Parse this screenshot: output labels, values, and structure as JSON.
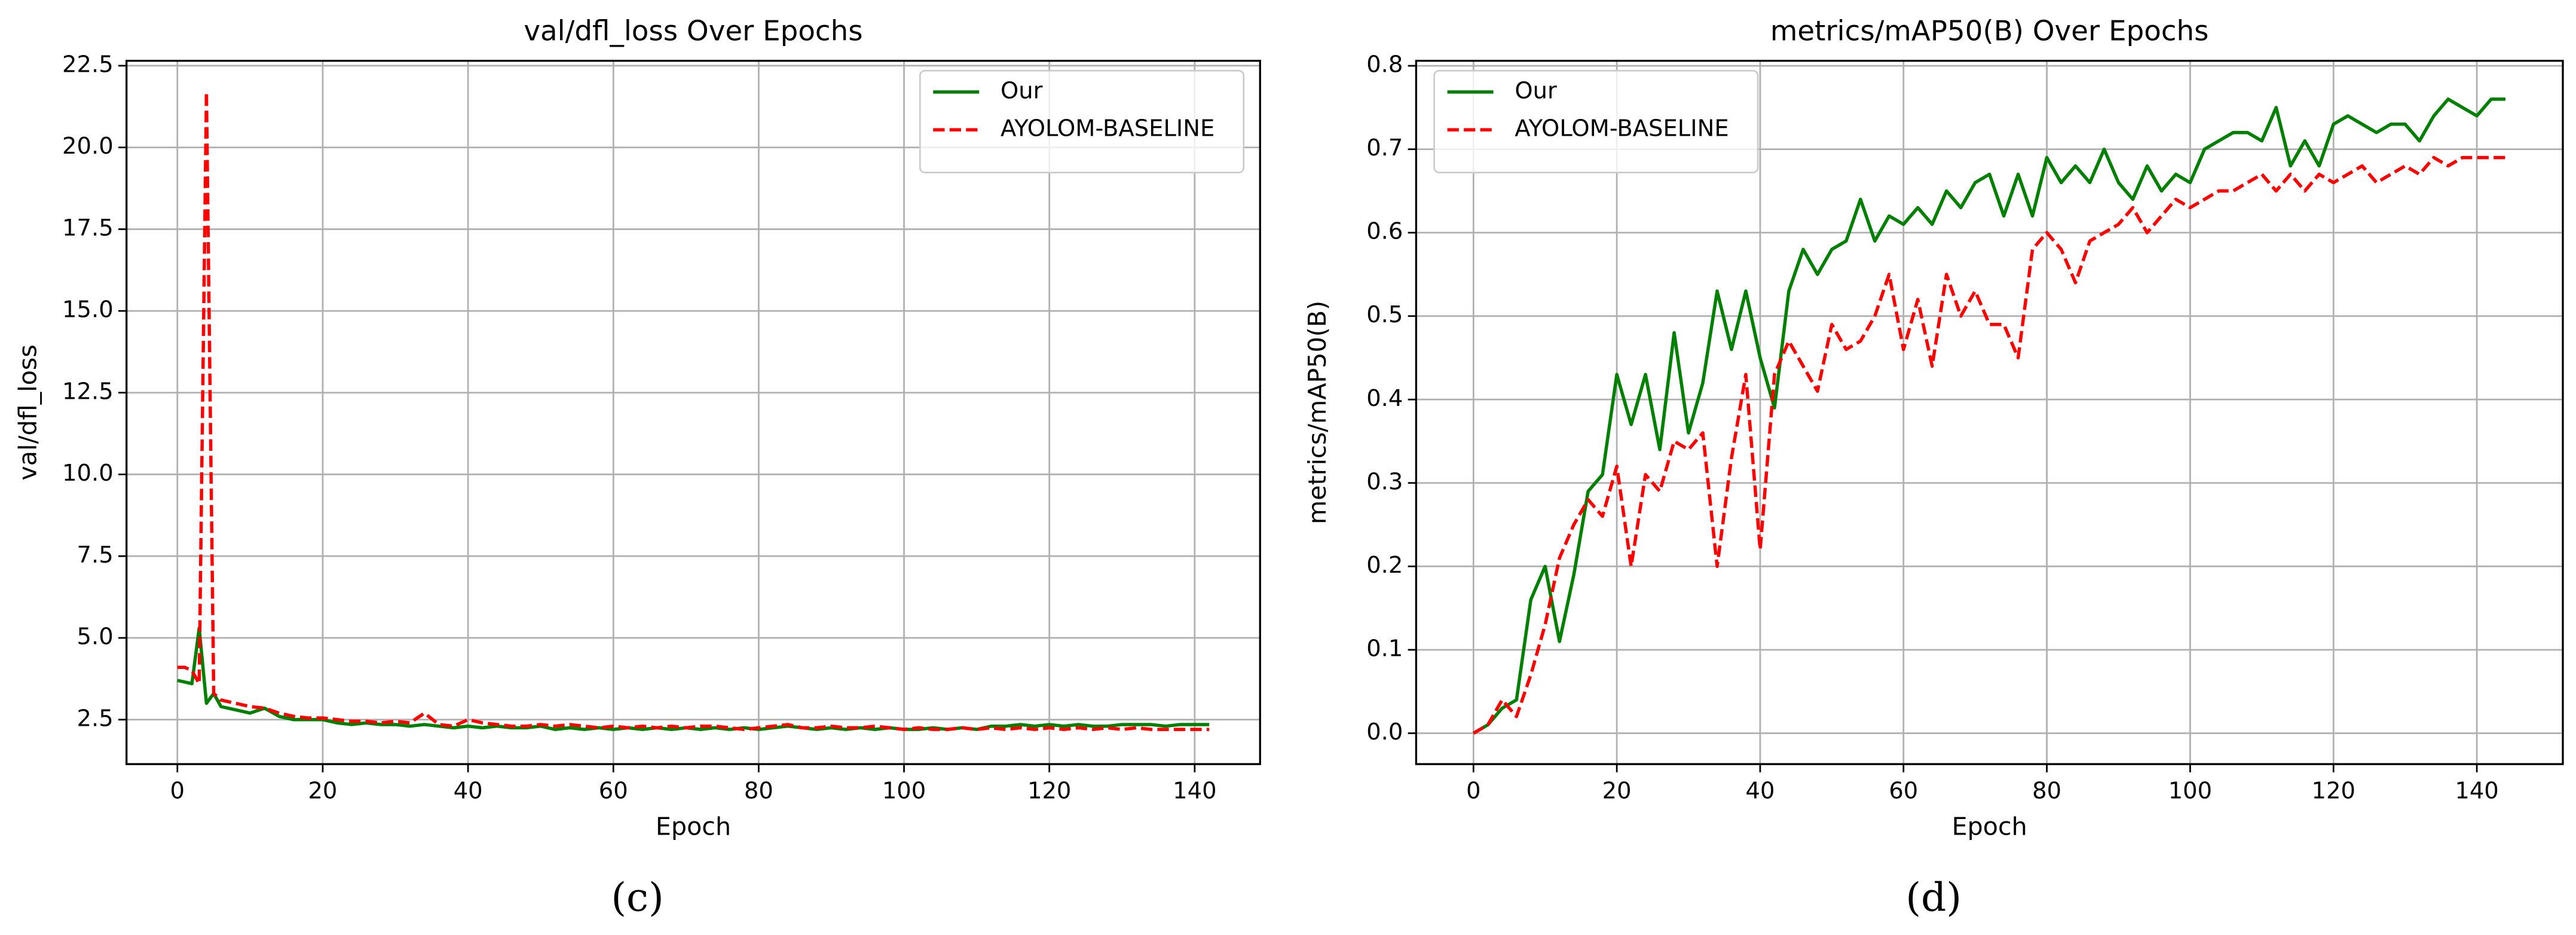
{
  "chart_data": [
    {
      "type": "line",
      "title": "val/dfl_loss Over Epochs",
      "x_label": "Epoch",
      "y_label": "val/dfl_loss",
      "caption": "(c)",
      "x": [
        0,
        1,
        2,
        3,
        4,
        5,
        6,
        8,
        10,
        12,
        14,
        16,
        18,
        20,
        22,
        24,
        26,
        28,
        30,
        32,
        34,
        36,
        38,
        40,
        42,
        44,
        46,
        48,
        50,
        52,
        54,
        56,
        58,
        60,
        62,
        64,
        66,
        68,
        70,
        72,
        74,
        76,
        78,
        80,
        82,
        84,
        86,
        88,
        90,
        92,
        94,
        96,
        98,
        100,
        102,
        104,
        106,
        108,
        110,
        112,
        114,
        116,
        118,
        120,
        122,
        124,
        126,
        128,
        130,
        132,
        134,
        136,
        138,
        140,
        142
      ],
      "series": [
        {
          "name": "Our",
          "color": "#008000",
          "linestyle": "solid",
          "values": [
            3.7,
            3.65,
            3.6,
            5.3,
            3.0,
            3.3,
            2.9,
            2.8,
            2.7,
            2.85,
            2.6,
            2.5,
            2.5,
            2.5,
            2.4,
            2.35,
            2.4,
            2.35,
            2.35,
            2.3,
            2.35,
            2.3,
            2.25,
            2.3,
            2.25,
            2.3,
            2.25,
            2.25,
            2.3,
            2.2,
            2.25,
            2.2,
            2.25,
            2.2,
            2.25,
            2.2,
            2.25,
            2.2,
            2.25,
            2.2,
            2.25,
            2.2,
            2.25,
            2.2,
            2.25,
            2.3,
            2.25,
            2.2,
            2.25,
            2.2,
            2.25,
            2.2,
            2.25,
            2.2,
            2.2,
            2.25,
            2.2,
            2.25,
            2.2,
            2.3,
            2.3,
            2.35,
            2.3,
            2.35,
            2.3,
            2.35,
            2.3,
            2.3,
            2.35,
            2.35,
            2.35,
            2.3,
            2.35,
            2.35,
            2.35
          ]
        },
        {
          "name": "AYOLOM-BASELINE",
          "color": "#ff0000",
          "linestyle": "dashed",
          "values": [
            4.1,
            4.1,
            4.0,
            3.6,
            21.7,
            3.3,
            3.1,
            3.0,
            2.9,
            2.85,
            2.7,
            2.6,
            2.55,
            2.55,
            2.5,
            2.45,
            2.45,
            2.4,
            2.45,
            2.4,
            2.7,
            2.35,
            2.3,
            2.5,
            2.4,
            2.35,
            2.3,
            2.3,
            2.35,
            2.3,
            2.35,
            2.3,
            2.25,
            2.3,
            2.25,
            2.3,
            2.25,
            2.3,
            2.25,
            2.3,
            2.3,
            2.25,
            2.2,
            2.25,
            2.3,
            2.35,
            2.25,
            2.25,
            2.3,
            2.25,
            2.25,
            2.3,
            2.25,
            2.2,
            2.25,
            2.2,
            2.2,
            2.25,
            2.2,
            2.25,
            2.2,
            2.25,
            2.2,
            2.25,
            2.2,
            2.25,
            2.2,
            2.25,
            2.2,
            2.25,
            2.2,
            2.2,
            2.2,
            2.2,
            2.2
          ]
        }
      ],
      "xlim": [
        -7,
        149
      ],
      "xticks": [
        0,
        20,
        40,
        60,
        80,
        100,
        120,
        140
      ],
      "ylim": [
        1.14,
        22.65
      ],
      "yticks": [
        2.5,
        {
          "value": 5,
          "label": "5.0"
        },
        7.5,
        {
          "value": 10,
          "label": "10.0"
        },
        12.5,
        {
          "value": 15,
          "label": "15.0"
        },
        17.5,
        {
          "value": 20,
          "label": "20.0"
        },
        22.5
      ],
      "grid": true,
      "legend": "upper-right"
    },
    {
      "type": "line",
      "title": "metrics/mAP50(B) Over Epochs",
      "x_label": "Epoch",
      "y_label": "metrics/mAP50(B)",
      "caption": "(d)",
      "x": [
        0,
        2,
        4,
        6,
        8,
        10,
        12,
        14,
        16,
        18,
        20,
        22,
        24,
        26,
        28,
        30,
        32,
        34,
        36,
        38,
        40,
        42,
        44,
        46,
        48,
        50,
        52,
        54,
        56,
        58,
        60,
        62,
        64,
        66,
        68,
        70,
        72,
        74,
        76,
        78,
        80,
        82,
        84,
        86,
        88,
        90,
        92,
        94,
        96,
        98,
        100,
        102,
        104,
        106,
        108,
        110,
        112,
        114,
        116,
        118,
        120,
        122,
        124,
        126,
        128,
        130,
        132,
        134,
        136,
        138,
        140,
        142,
        144
      ],
      "series": [
        {
          "name": "Our",
          "color": "#008000",
          "linestyle": "solid",
          "values": [
            0.0,
            0.01,
            0.03,
            0.04,
            0.16,
            0.2,
            0.11,
            0.19,
            0.29,
            0.31,
            0.43,
            0.37,
            0.43,
            0.34,
            0.48,
            0.36,
            0.42,
            0.53,
            0.46,
            0.53,
            0.45,
            0.39,
            0.53,
            0.58,
            0.55,
            0.58,
            0.59,
            0.64,
            0.59,
            0.62,
            0.61,
            0.63,
            0.61,
            0.65,
            0.63,
            0.66,
            0.67,
            0.62,
            0.67,
            0.62,
            0.69,
            0.66,
            0.68,
            0.66,
            0.7,
            0.66,
            0.64,
            0.68,
            0.65,
            0.67,
            0.66,
            0.7,
            0.71,
            0.72,
            0.72,
            0.71,
            0.75,
            0.68,
            0.71,
            0.68,
            0.73,
            0.74,
            0.73,
            0.72,
            0.73,
            0.73,
            0.71,
            0.74,
            0.76,
            0.75,
            0.74,
            0.76,
            0.76
          ]
        },
        {
          "name": "AYOLOM-BASELINE",
          "color": "#ff0000",
          "linestyle": "dashed",
          "values": [
            0.0,
            0.01,
            0.04,
            0.02,
            0.07,
            0.13,
            0.21,
            0.25,
            0.28,
            0.26,
            0.32,
            0.2,
            0.31,
            0.29,
            0.35,
            0.34,
            0.36,
            0.2,
            0.33,
            0.43,
            0.22,
            0.43,
            0.47,
            0.44,
            0.41,
            0.49,
            0.46,
            0.47,
            0.5,
            0.55,
            0.46,
            0.52,
            0.44,
            0.55,
            0.5,
            0.53,
            0.49,
            0.49,
            0.45,
            0.58,
            0.6,
            0.58,
            0.54,
            0.59,
            0.6,
            0.61,
            0.63,
            0.6,
            0.62,
            0.64,
            0.63,
            0.64,
            0.65,
            0.65,
            0.66,
            0.67,
            0.65,
            0.67,
            0.65,
            0.67,
            0.66,
            0.67,
            0.68,
            0.66,
            0.67,
            0.68,
            0.67,
            0.69,
            0.68,
            0.69,
            0.69,
            0.69,
            0.69
          ]
        }
      ],
      "xlim": [
        -8,
        152
      ],
      "xticks": [
        0,
        20,
        40,
        60,
        80,
        100,
        120,
        140
      ],
      "ylim": [
        -0.037,
        0.806
      ],
      "yticks": [
        {
          "value": 0,
          "label": "0.0"
        },
        0.1,
        0.2,
        0.3,
        0.4,
        0.5,
        0.6,
        0.7,
        0.8
      ],
      "grid": true,
      "legend": "upper-left"
    }
  ]
}
